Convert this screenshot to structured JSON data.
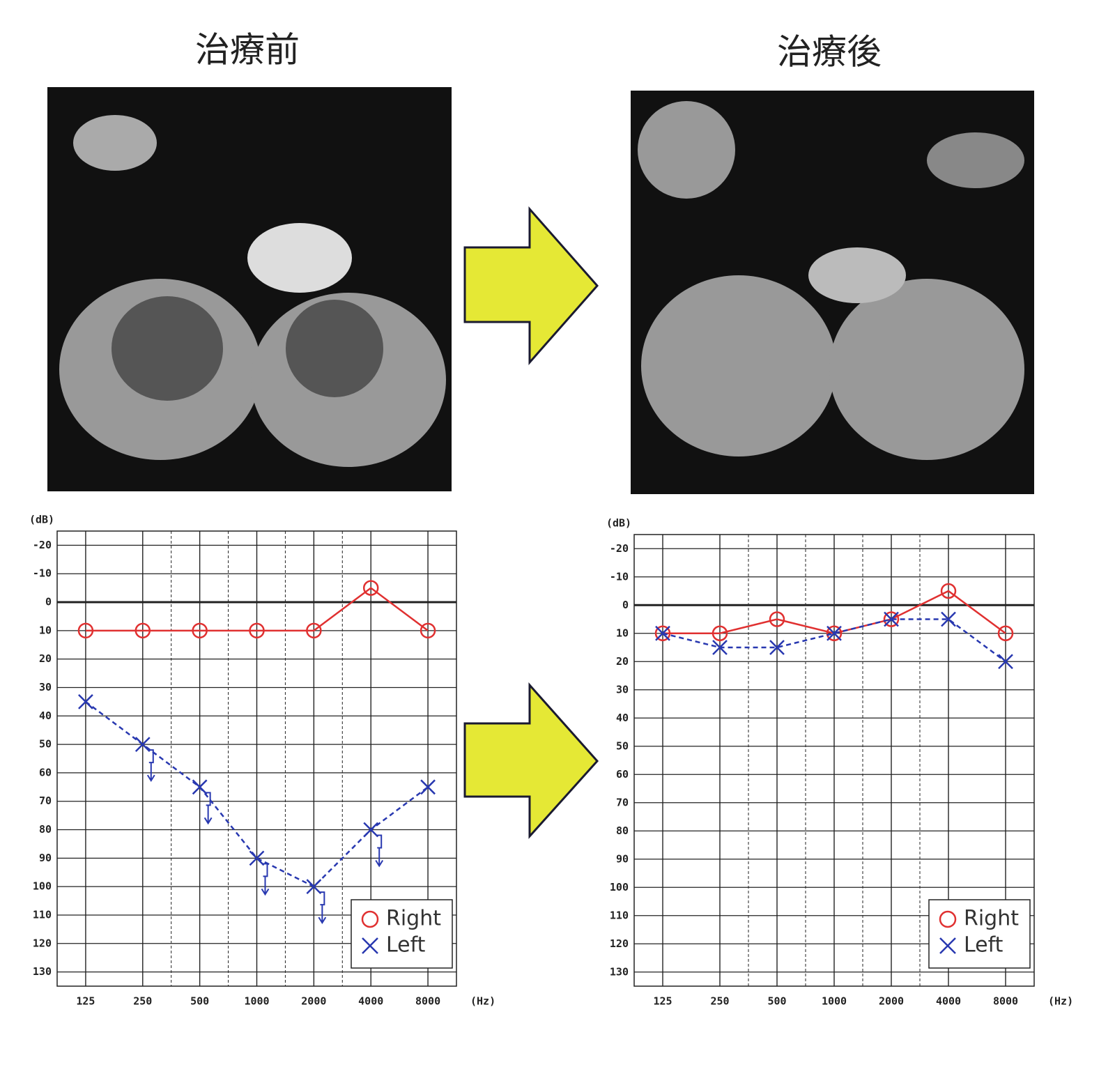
{
  "chart_data": [
    {
      "type": "line",
      "title": "治療前",
      "x_label": "(Hz)",
      "y_label": "(dB)",
      "categories": [
        "125",
        "250",
        "500",
        "1000",
        "2000",
        "4000",
        "8000"
      ],
      "ylim": [
        -25,
        135
      ],
      "invert_y": true,
      "yticks": [
        -20,
        -10,
        0,
        10,
        20,
        30,
        40,
        50,
        60,
        70,
        80,
        90,
        100,
        110,
        120,
        130
      ],
      "grid": true,
      "legend": "lower right",
      "series": [
        {
          "name": "Right",
          "color": "#e03030",
          "marker": "o",
          "dash": false,
          "values": [
            10,
            10,
            10,
            10,
            10,
            -5,
            10
          ]
        },
        {
          "name": "Left",
          "color": "#2838b0",
          "marker": "x",
          "dash": true,
          "values": [
            35,
            50,
            65,
            90,
            100,
            80,
            65
          ],
          "no_response": [
            false,
            true,
            true,
            true,
            true,
            true,
            false
          ]
        }
      ]
    },
    {
      "type": "line",
      "title": "治療後",
      "x_label": "(Hz)",
      "y_label": "(dB)",
      "categories": [
        "125",
        "250",
        "500",
        "1000",
        "2000",
        "4000",
        "8000"
      ],
      "ylim": [
        -25,
        135
      ],
      "invert_y": true,
      "yticks": [
        -20,
        -10,
        0,
        10,
        20,
        30,
        40,
        50,
        60,
        70,
        80,
        90,
        100,
        110,
        120,
        130
      ],
      "grid": true,
      "legend": "lower right",
      "series": [
        {
          "name": "Right",
          "color": "#e03030",
          "marker": "o",
          "dash": false,
          "values": [
            10,
            10,
            5,
            10,
            5,
            -5,
            10
          ]
        },
        {
          "name": "Left",
          "color": "#2838b0",
          "marker": "x",
          "dash": true,
          "values": [
            10,
            15,
            15,
            10,
            5,
            5,
            20
          ]
        }
      ]
    }
  ]
}
